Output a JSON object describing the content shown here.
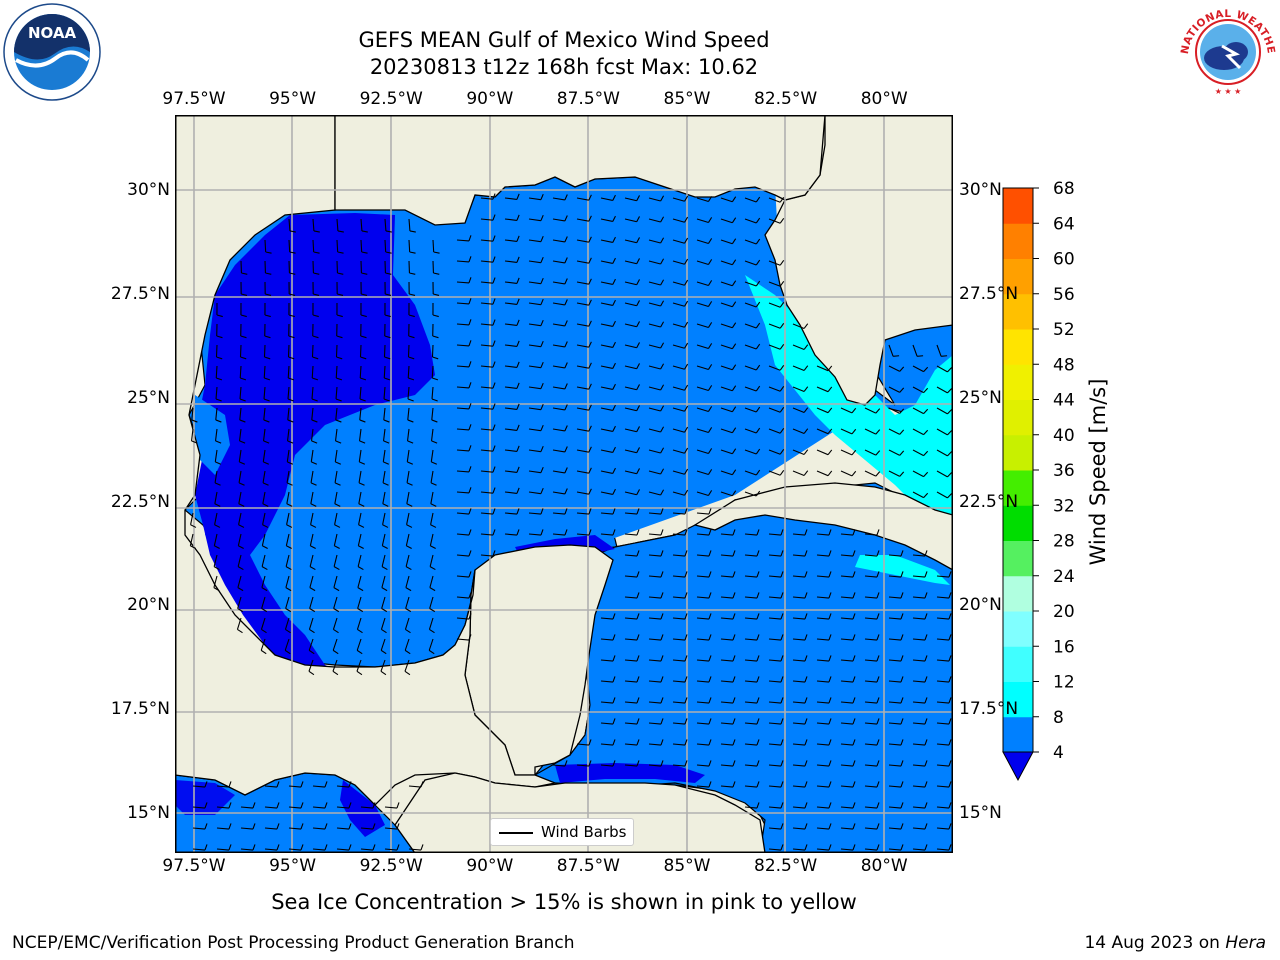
{
  "header": {
    "title_line1": "GEFS MEAN Gulf of Mexico Wind Speed",
    "title_line2": "20230813 t12z 168h fcst   Max: 10.62"
  },
  "axes": {
    "lon_labels": [
      "97.5°W",
      "95°W",
      "92.5°W",
      "90°W",
      "87.5°W",
      "85°W",
      "82.5°W",
      "80°W"
    ],
    "lat_labels": [
      "30°N",
      "27.5°N",
      "25°N",
      "22.5°N",
      "20°N",
      "17.5°N",
      "15°N"
    ],
    "lon_values": [
      -97.5,
      -95,
      -92.5,
      -90,
      -87.5,
      -85,
      -82.5,
      -80
    ],
    "lat_values": [
      30,
      27.5,
      25,
      22.5,
      20,
      17.5,
      15
    ],
    "lon_range": [
      -98,
      -78.25
    ],
    "lat_range": [
      14,
      31.8
    ],
    "grid": true
  },
  "legend": {
    "label": "Wind Barbs"
  },
  "colorbar": {
    "label": "Wind Speed [m/s]",
    "levels": [
      "4",
      "8",
      "12",
      "16",
      "20",
      "24",
      "28",
      "32",
      "36",
      "40",
      "44",
      "48",
      "52",
      "56",
      "60",
      "64",
      "68"
    ],
    "colors": [
      "#0080ff",
      "#00ffff",
      "#40ffff",
      "#80ffff",
      "#b0ffe0",
      "#55f060",
      "#00dd00",
      "#44ee00",
      "#c8f000",
      "#e0f000",
      "#f0f000",
      "#ffe400",
      "#ffc000",
      "#ffa000",
      "#ff8000",
      "#ff5000",
      "#ff2000",
      "#ff0000"
    ],
    "under_color": "#0000ff"
  },
  "map_colors": {
    "land": "#efefdf",
    "low": "#0000ee",
    "mid": "#0080ff",
    "high": "#00ffff",
    "grid": "#b0b0b0"
  },
  "note": "Sea Ice Concentration > 15% is shown in pink to yellow",
  "footer": {
    "left": "NCEP/EMC/Verification Post Processing Product Generation Branch",
    "date": "14 Aug 2023 on ",
    "host": "Hera"
  },
  "logos": {
    "left_icon": "noaa-logo",
    "left_text": "NOAA",
    "right_icon": "nws-logo",
    "right_text": "NATIONAL WEATHER SERVICE"
  }
}
